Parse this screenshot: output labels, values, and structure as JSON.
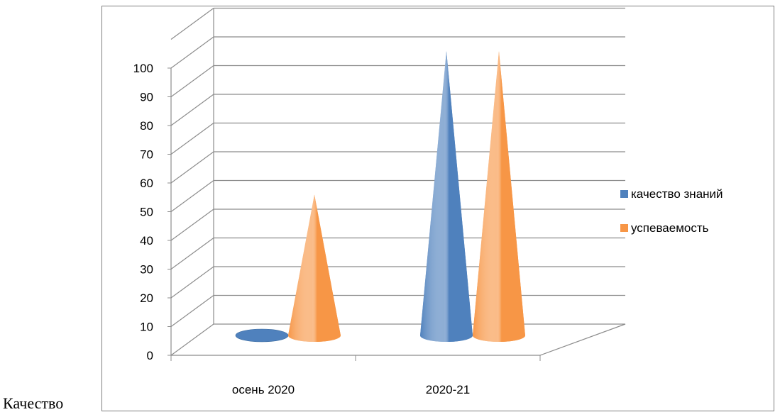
{
  "caption": "Качество",
  "chart_data": {
    "type": "bar",
    "shape": "cone-3d",
    "categories": [
      "осень 2020",
      "2020-21"
    ],
    "series": [
      {
        "name": "качество знаний",
        "values": [
          0,
          100
        ],
        "color": "#4f81bd"
      },
      {
        "name": "успеваемость",
        "values": [
          50,
          100
        ],
        "color": "#f79646"
      }
    ],
    "ylim": [
      0,
      100
    ],
    "yticks": [
      0,
      10,
      20,
      30,
      40,
      50,
      60,
      70,
      80,
      90,
      100
    ],
    "grid": true,
    "legend_position": "right"
  }
}
